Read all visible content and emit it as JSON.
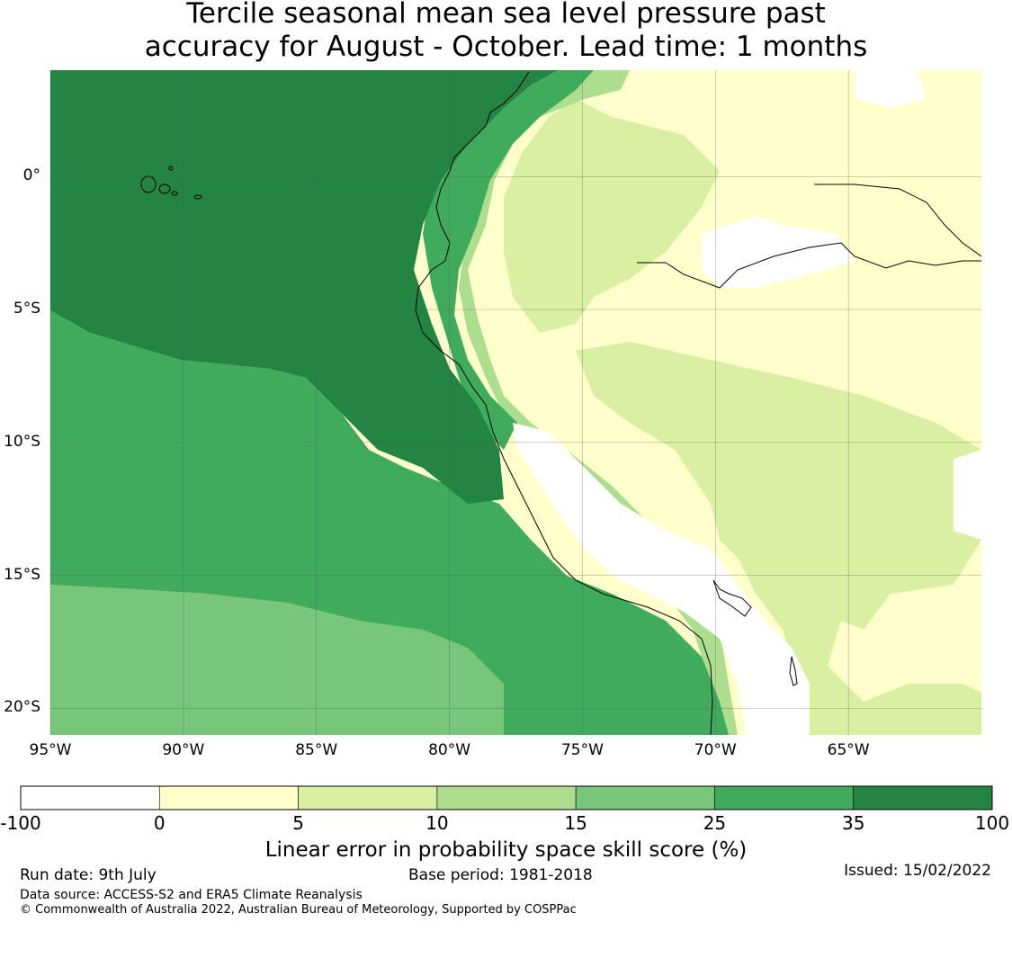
{
  "title": {
    "line1": "Tercile seasonal mean sea level pressure past",
    "line2": "accuracy for August - October. Lead time: 1 months"
  },
  "map": {
    "lat_labels": [
      "0°",
      "5°S",
      "10°S",
      "15°S",
      "20°S"
    ],
    "lon_labels": [
      "95°W",
      "90°W",
      "85°W",
      "80°W",
      "75°W",
      "70°W",
      "65°W"
    ],
    "extent": {
      "lon_min": -95,
      "lon_max": -60,
      "lat_min": -21,
      "lat_max": 4
    }
  },
  "colorbar": {
    "label": "Linear error in probability space skill score (%)",
    "ticks": [
      "-100",
      "0",
      "5",
      "10",
      "15",
      "25",
      "35",
      "100"
    ],
    "colors": [
      "#ffffff",
      "#ffffcc",
      "#d9f0a3",
      "#addd8e",
      "#78c679",
      "#41ab5d",
      "#238443"
    ]
  },
  "footer": {
    "run_date": "Run date: 9th July",
    "base_period": "Base period: 1981-2018",
    "issued": "Issued: 15/02/2022",
    "data_source": "Data source: ACCESS-S2 and ERA5 Climate Reanalysis",
    "copyright": "© Commonwealth of Australia 2022, Australian Bureau of Meteorology, Supported by COSPPac"
  }
}
